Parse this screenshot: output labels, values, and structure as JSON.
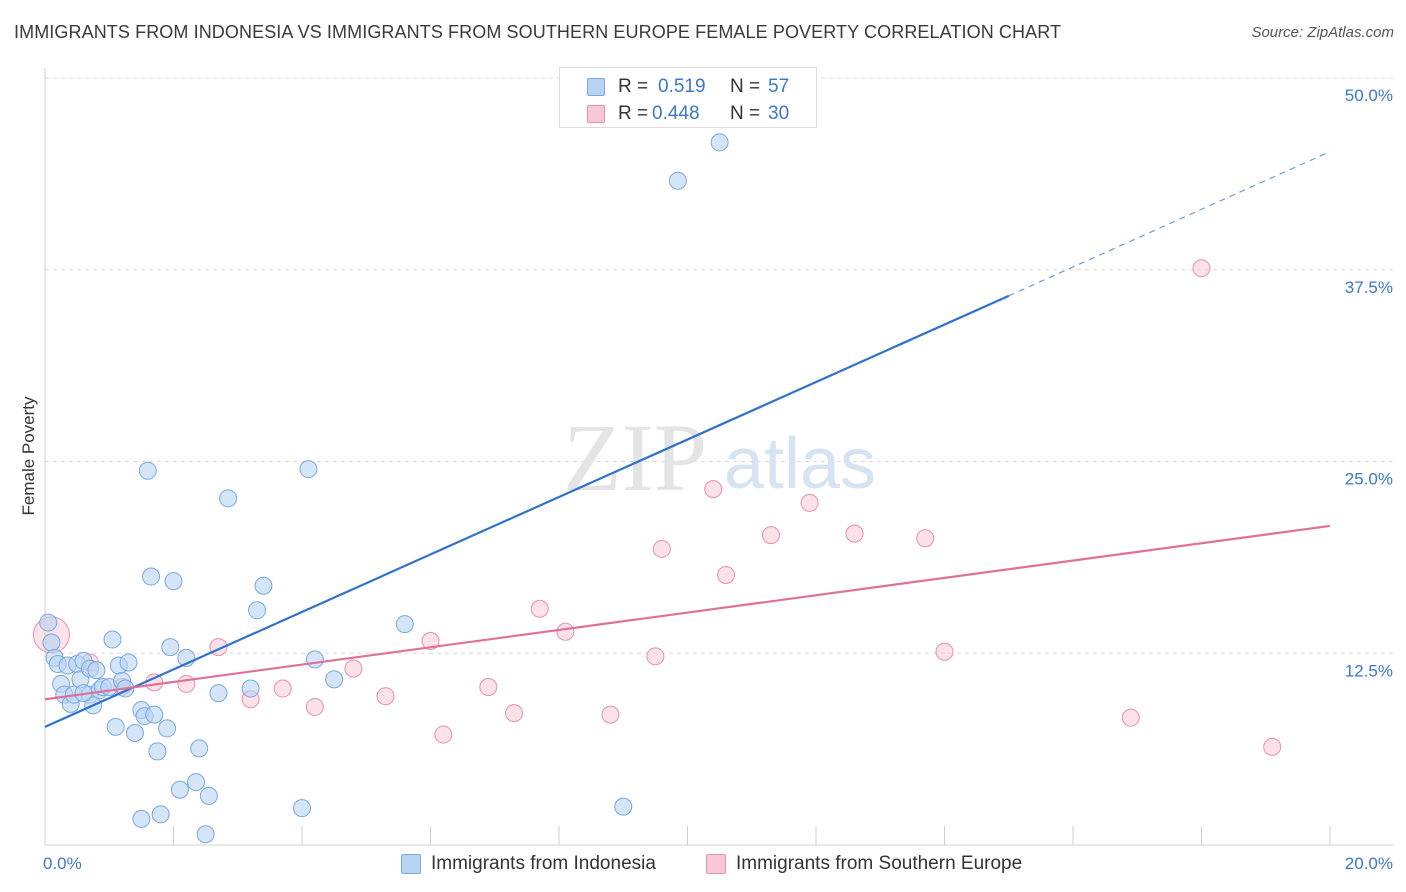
{
  "title": "IMMIGRANTS FROM INDONESIA VS IMMIGRANTS FROM SOUTHERN EUROPE FEMALE POVERTY CORRELATION CHART",
  "source": "Source: ZipAtlas.com",
  "watermark": {
    "zip": "ZIP",
    "atlas": "atlas"
  },
  "legend": {
    "rows": [
      {
        "r_label": "R =",
        "r_value": "0.519",
        "n_label": "N =",
        "n_value": "57"
      },
      {
        "r_label": "R =",
        "r_value": "0.448",
        "n_label": "N =",
        "n_value": "30"
      }
    ]
  },
  "colors": {
    "blue_fill": "#b8d3f3",
    "blue_stroke": "#7aa8de",
    "blue_line": "#2f72cc",
    "pink_fill": "#f8c8d6",
    "pink_stroke": "#e98fac",
    "pink_line": "#e0709a",
    "tick_text": "#3c78c8",
    "grid": "#d9d9d9"
  },
  "chart_data": {
    "type": "scatter",
    "title": "IMMIGRANTS FROM INDONESIA VS IMMIGRANTS FROM SOUTHERN EUROPE FEMALE POVERTY CORRELATION CHART",
    "xlabel": "",
    "ylabel": "Female Poverty",
    "xlim": [
      0,
      20
    ],
    "ylim": [
      0,
      50
    ],
    "x_tick_labels": [
      "0.0%",
      "20.0%"
    ],
    "y_ticks": [
      12.5,
      25.0,
      37.5,
      50.0
    ],
    "y_tick_labels": [
      "12.5%",
      "25.0%",
      "37.5%",
      "50.0%"
    ],
    "grid": true,
    "legend_position": "top-center",
    "series": [
      {
        "name": "Immigrants from Indonesia",
        "r": 0.519,
        "n": 57,
        "trend": {
          "x_start": 0,
          "y_start": 7.7,
          "x_end": 15,
          "y_end": 35.8,
          "x_dash_end": 20,
          "y_dash_end": 45.2
        },
        "points": [
          [
            0.05,
            14.5
          ],
          [
            0.1,
            13.2
          ],
          [
            0.15,
            12.2
          ],
          [
            0.2,
            11.8
          ],
          [
            0.25,
            10.5
          ],
          [
            0.3,
            9.8
          ],
          [
            0.35,
            11.7
          ],
          [
            0.4,
            9.2
          ],
          [
            0.45,
            9.8
          ],
          [
            0.5,
            11.8
          ],
          [
            0.55,
            10.8
          ],
          [
            0.6,
            12.0
          ],
          [
            0.7,
            11.5
          ],
          [
            0.7,
            9.8
          ],
          [
            0.75,
            9.1
          ],
          [
            0.8,
            11.4
          ],
          [
            0.85,
            10.1
          ],
          [
            0.9,
            10.3
          ],
          [
            1.0,
            10.3
          ],
          [
            1.05,
            13.4
          ],
          [
            1.1,
            7.7
          ],
          [
            1.15,
            11.7
          ],
          [
            1.2,
            10.7
          ],
          [
            1.25,
            10.2
          ],
          [
            1.3,
            11.9
          ],
          [
            1.4,
            7.3
          ],
          [
            1.5,
            8.8
          ],
          [
            1.55,
            8.4
          ],
          [
            1.6,
            24.4
          ],
          [
            1.65,
            17.5
          ],
          [
            1.7,
            8.5
          ],
          [
            1.75,
            6.1
          ],
          [
            1.9,
            7.6
          ],
          [
            1.95,
            12.9
          ],
          [
            2.0,
            17.2
          ],
          [
            2.1,
            3.6
          ],
          [
            2.2,
            12.2
          ],
          [
            2.35,
            4.1
          ],
          [
            2.4,
            6.3
          ],
          [
            2.55,
            3.2
          ],
          [
            2.7,
            9.9
          ],
          [
            2.85,
            22.6
          ],
          [
            3.2,
            10.2
          ],
          [
            3.3,
            15.3
          ],
          [
            3.4,
            16.9
          ],
          [
            4.1,
            24.5
          ],
          [
            4.2,
            12.1
          ],
          [
            4.5,
            10.8
          ],
          [
            5.6,
            14.4
          ],
          [
            9.0,
            2.5
          ],
          [
            9.85,
            43.3
          ],
          [
            10.5,
            45.8
          ],
          [
            1.5,
            1.7
          ],
          [
            1.8,
            2.0
          ],
          [
            2.5,
            0.7
          ],
          [
            4.0,
            2.4
          ],
          [
            0.6,
            9.9
          ]
        ]
      },
      {
        "name": "Immigrants from Southern Europe",
        "r": 0.448,
        "n": 30,
        "trend": {
          "x_start": 0,
          "y_start": 9.5,
          "x_end": 20,
          "y_end": 20.8
        },
        "points": [
          [
            0.1,
            13.7
          ],
          [
            0.7,
            11.9
          ],
          [
            1.2,
            10.3
          ],
          [
            1.7,
            10.6
          ],
          [
            2.2,
            10.5
          ],
          [
            2.7,
            12.9
          ],
          [
            3.2,
            9.5
          ],
          [
            3.7,
            10.2
          ],
          [
            4.2,
            9.0
          ],
          [
            4.8,
            11.5
          ],
          [
            5.3,
            9.7
          ],
          [
            6.0,
            13.3
          ],
          [
            6.2,
            7.2
          ],
          [
            6.9,
            10.3
          ],
          [
            7.3,
            8.6
          ],
          [
            7.7,
            15.4
          ],
          [
            8.1,
            13.9
          ],
          [
            8.8,
            8.5
          ],
          [
            9.5,
            12.3
          ],
          [
            9.6,
            19.3
          ],
          [
            10.4,
            23.2
          ],
          [
            10.6,
            17.6
          ],
          [
            11.3,
            20.2
          ],
          [
            11.9,
            22.3
          ],
          [
            12.6,
            20.3
          ],
          [
            13.7,
            20.0
          ],
          [
            14.0,
            12.6
          ],
          [
            16.9,
            8.3
          ],
          [
            18.0,
            37.6
          ],
          [
            19.1,
            6.4
          ]
        ]
      }
    ]
  }
}
